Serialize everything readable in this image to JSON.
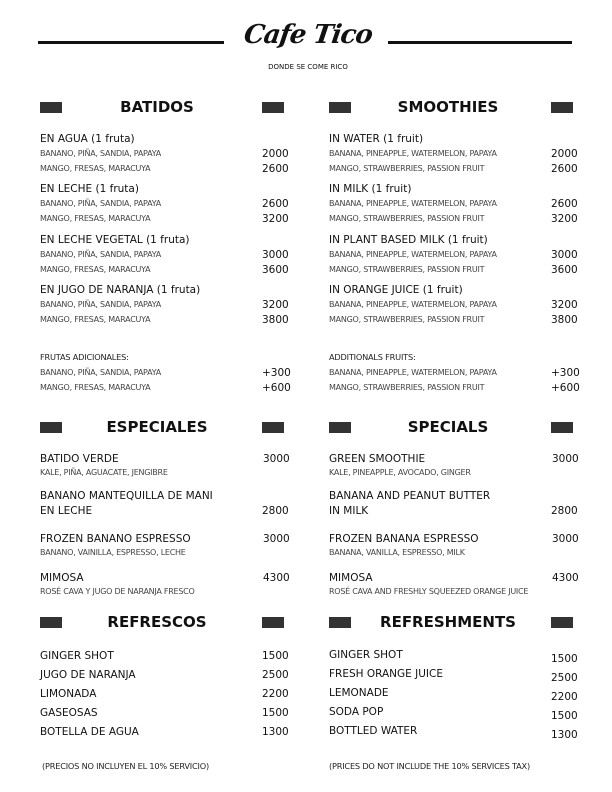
{
  "brand": {
    "logo": "Cafe Tico",
    "tagline": "DONDE SE COME RICO"
  },
  "left": {
    "batidos": {
      "title": "BATIDOS",
      "groups": [
        {
          "name": "EN AGUA (1 fruta)",
          "lines": [
            {
              "text": "BANANO, PIÑA, SANDIA, PAPAYA",
              "price": "2000"
            },
            {
              "text": "MANGO, FRESAS, MARACUYA",
              "price": "2600"
            }
          ]
        },
        {
          "name": "EN LECHE (1 fruta)",
          "lines": [
            {
              "text": "BANANO, PIÑA, SANDIA, PAPAYA",
              "price": "2600"
            },
            {
              "text": "MANGO, FRESAS, MARACUYA",
              "price": "3200"
            }
          ]
        },
        {
          "name": "EN LECHE VEGETAL (1 fruta)",
          "lines": [
            {
              "text": "BANANO, PIÑA, SANDIA, PAPAYA",
              "price": "3000"
            },
            {
              "text": "MANGO, FRESAS, MARACUYA",
              "price": "3600"
            }
          ]
        },
        {
          "name": "EN JUGO DE NARANJA (1 fruta)",
          "lines": [
            {
              "text": "BANANO, PIÑA, SANDIA, PAPAYA",
              "price": "3200"
            },
            {
              "text": "MANGO, FRESAS, MARACUYA",
              "price": "3800"
            }
          ]
        }
      ],
      "extras": {
        "label": "FRUTAS ADICIONALES:",
        "lines": [
          {
            "text": "BANANO, PIÑA, SANDIA, PAPAYA",
            "price": "+300"
          },
          {
            "text": "MANGO, FRESAS, MARACUYA",
            "price": "+600"
          }
        ]
      }
    },
    "especiales": {
      "title": "ESPECIALES",
      "items": [
        {
          "name": "BATIDO VERDE",
          "desc": "KALE, PIÑA, AGUACATE, JENGIBRE",
          "price": "3000"
        },
        {
          "name": "BANANO MANTEQUILLA DE MANI",
          "name2": "EN LECHE",
          "price": "2800"
        },
        {
          "name": "FROZEN BANANO ESPRESSO",
          "desc": "BANANO, VAINILLA, ESPRESSO, LECHE",
          "price": "3000"
        },
        {
          "name": "MIMOSA",
          "desc": "ROSÉ CAVA Y JUGO DE NARANJA FRESCO",
          "price": "4300"
        }
      ]
    },
    "refrescos": {
      "title": "REFRESCOS",
      "items": [
        {
          "name": "GINGER SHOT",
          "price": "1500"
        },
        {
          "name": "JUGO DE NARANJA",
          "price": "2500"
        },
        {
          "name": "LIMONADA",
          "price": "2200"
        },
        {
          "name": "GASEOSAS",
          "price": "1500"
        },
        {
          "name": "BOTELLA DE AGUA",
          "price": "1300"
        }
      ]
    },
    "footer": "(PRECIOS NO INCLUYEN EL 10% SERVICIO)"
  },
  "right": {
    "batidos": {
      "title": "SMOOTHIES",
      "groups": [
        {
          "name": "IN WATER (1 fruit)",
          "lines": [
            {
              "text": "BANANA, PINEAPPLE, WATERMELON, PAPAYA",
              "price": "2000"
            },
            {
              "text": "MANGO, STRAWBERRIES, PASSION FRUIT",
              "price": "2600"
            }
          ]
        },
        {
          "name": "IN MILK (1 fruit)",
          "lines": [
            {
              "text": "BANANA, PINEAPPLE, WATERMELON, PAPAYA",
              "price": "2600"
            },
            {
              "text": "MANGO, STRAWBERRIES, PASSION FRUIT",
              "price": "3200"
            }
          ]
        },
        {
          "name": "IN PLANT BASED MILK (1 fruit)",
          "lines": [
            {
              "text": "BANANA, PINEAPPLE, WATERMELON, PAPAYA",
              "price": "3000"
            },
            {
              "text": "MANGO, STRAWBERRIES, PASSION FRUIT",
              "price": "3600"
            }
          ]
        },
        {
          "name": "IN ORANGE JUICE (1 fruit)",
          "lines": [
            {
              "text": "BANANA, PINEAPPLE, WATERMELON, PAPAYA",
              "price": "3200"
            },
            {
              "text": "MANGO, STRAWBERRIES, PASSION FRUIT",
              "price": "3800"
            }
          ]
        }
      ],
      "extras": {
        "label": "ADDITIONALS FRUITS:",
        "lines": [
          {
            "text": "BANANA, PINEAPPLE, WATERMELON, PAPAYA",
            "price": "+300"
          },
          {
            "text": "MANGO, STRAWBERRIES, PASSION FRUIT",
            "price": "+600"
          }
        ]
      }
    },
    "especiales": {
      "title": "SPECIALS",
      "items": [
        {
          "name": "GREEN SMOOTHIE",
          "desc": "KALE, PINEAPPLE, AVOCADO, GINGER",
          "price": "3000"
        },
        {
          "name": "BANANA AND PEANUT BUTTER",
          "name2": "IN MILK",
          "price": "2800"
        },
        {
          "name": "FROZEN BANANA ESPRESSO",
          "desc": "BANANA, VANILLA, ESPRESSO, MILK",
          "price": "3000"
        },
        {
          "name": "MIMOSA",
          "desc": "ROSÉ CAVA AND FRESHLY SQUEEZED ORANGE JUICE",
          "price": "4300"
        }
      ]
    },
    "refrescos": {
      "title": "REFRESHMENTS",
      "items": [
        {
          "name": "GINGER SHOT",
          "price": "1500"
        },
        {
          "name": "FRESH ORANGE JUICE",
          "price": "2500"
        },
        {
          "name": "LEMONADE",
          "price": "2200"
        },
        {
          "name": "SODA POP",
          "price": "1500"
        },
        {
          "name": "BOTTLED WATER",
          "price": "1300"
        }
      ]
    },
    "footer": "(PRICES DO NOT INCLUDE THE 10% SERVICES TAX)"
  }
}
